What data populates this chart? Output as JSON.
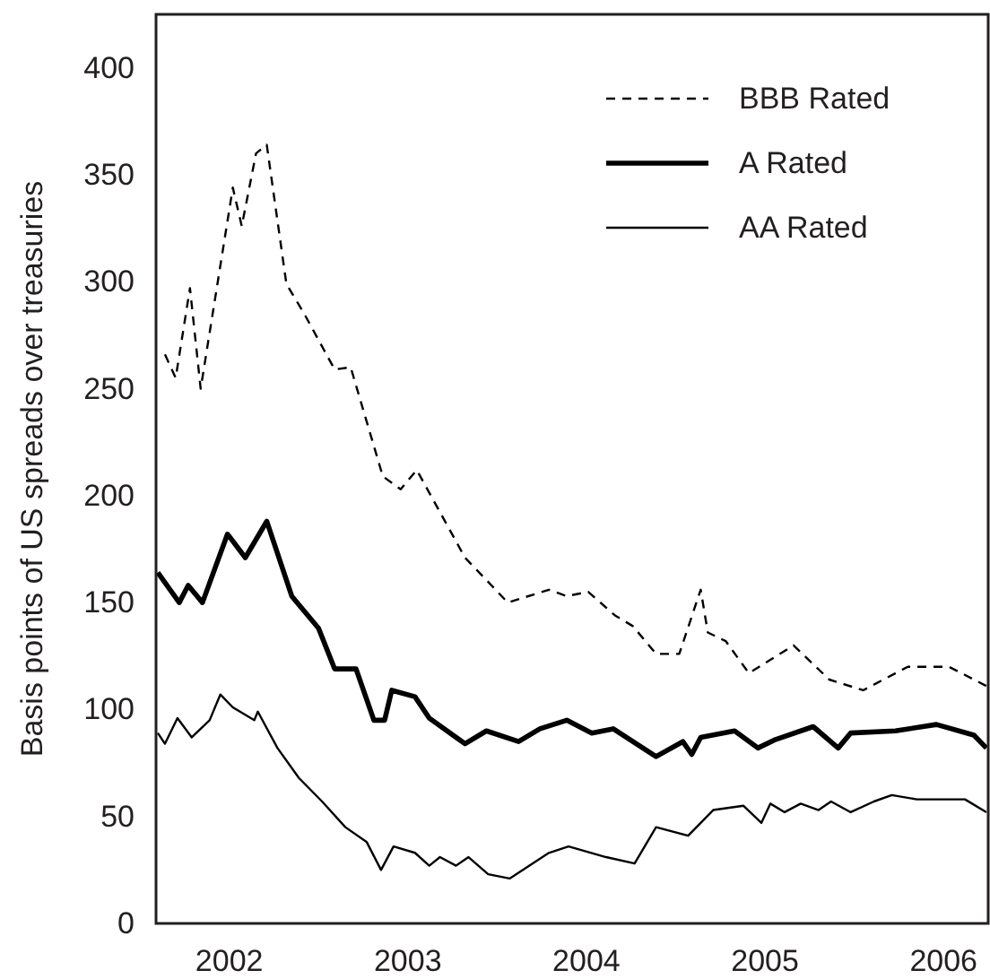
{
  "chart_data": {
    "type": "line",
    "ylabel": "Basis points of US spreads over treasuries",
    "xlim": [
      2001.59,
      2006.25
    ],
    "ylim": [
      0,
      425
    ],
    "xticks": [
      2002,
      2003,
      2004,
      2005,
      2006
    ],
    "yticks": [
      0,
      50,
      100,
      150,
      200,
      250,
      300,
      350,
      400
    ],
    "grid": false,
    "legend": "top right",
    "marker": "none",
    "series": [
      {
        "name": "BBB Rated",
        "color": "#000000",
        "line_style": "dashed",
        "x": [
          2001.64,
          2001.7,
          2001.78,
          2001.84,
          2002.02,
          2002.07,
          2002.15,
          2002.21,
          2002.32,
          2002.42,
          2002.59,
          2002.68,
          2002.86,
          2002.96,
          2003.05,
          2003.32,
          2003.56,
          2003.79,
          2003.89,
          2004.01,
          2004.16,
          2004.26,
          2004.39,
          2004.52,
          2004.64,
          2004.68,
          2004.78,
          2004.91,
          2005.16,
          2005.36,
          2005.55,
          2005.8,
          2006.03,
          2006.24
        ],
        "values": [
          266,
          255,
          297,
          250,
          344,
          326,
          360,
          364,
          299,
          285,
          259,
          260,
          209,
          203,
          212,
          171,
          150,
          156,
          153,
          155,
          144,
          139,
          126,
          126,
          156,
          136,
          132,
          117,
          130,
          114,
          109,
          120,
          120,
          111
        ]
      },
      {
        "name": "A Rated",
        "color": "#000000",
        "line_style": "solid",
        "x": [
          2001.6,
          2001.72,
          2001.77,
          2001.85,
          2001.99,
          2002.09,
          2002.21,
          2002.35,
          2002.5,
          2002.59,
          2002.71,
          2002.81,
          2002.87,
          2002.91,
          2003.04,
          2003.12,
          2003.32,
          2003.44,
          2003.62,
          2003.74,
          2003.89,
          2004.03,
          2004.15,
          2004.39,
          2004.54,
          2004.59,
          2004.64,
          2004.83,
          2004.96,
          2005.06,
          2005.27,
          2005.41,
          2005.48,
          2005.73,
          2005.96,
          2006.17,
          2006.24
        ],
        "values": [
          164,
          150,
          158,
          150,
          182,
          171,
          188,
          153,
          138,
          119,
          119,
          95,
          95,
          109,
          106,
          96,
          84,
          90,
          85,
          91,
          95,
          89,
          91,
          78,
          85,
          79,
          87,
          90,
          82,
          86,
          92,
          82,
          89,
          90,
          93,
          88,
          82
        ]
      },
      {
        "name": "AA Rated",
        "color": "#000000",
        "line_style": "solid",
        "x": [
          2001.6,
          2001.64,
          2001.71,
          2001.79,
          2001.89,
          2001.95,
          2002.02,
          2002.14,
          2002.16,
          2002.27,
          2002.39,
          2002.52,
          2002.65,
          2002.77,
          2002.85,
          2002.92,
          2003.04,
          2003.12,
          2003.18,
          2003.27,
          2003.34,
          2003.45,
          2003.57,
          2003.79,
          2003.9,
          2004.11,
          2004.27,
          2004.39,
          2004.57,
          2004.71,
          2004.88,
          2004.98,
          2005.03,
          2005.11,
          2005.2,
          2005.3,
          2005.37,
          2005.48,
          2005.61,
          2005.71,
          2005.85,
          2005.98,
          2006.12,
          2006.24
        ],
        "values": [
          89,
          84,
          96,
          87,
          95,
          107,
          101,
          95,
          99,
          82,
          68,
          57,
          45,
          38,
          25,
          36,
          33,
          27,
          31,
          27,
          31,
          23,
          21,
          33,
          36,
          31,
          28,
          45,
          41,
          53,
          55,
          47,
          56,
          52,
          56,
          53,
          57,
          52,
          57,
          60,
          58,
          58,
          58,
          52
        ]
      }
    ]
  }
}
